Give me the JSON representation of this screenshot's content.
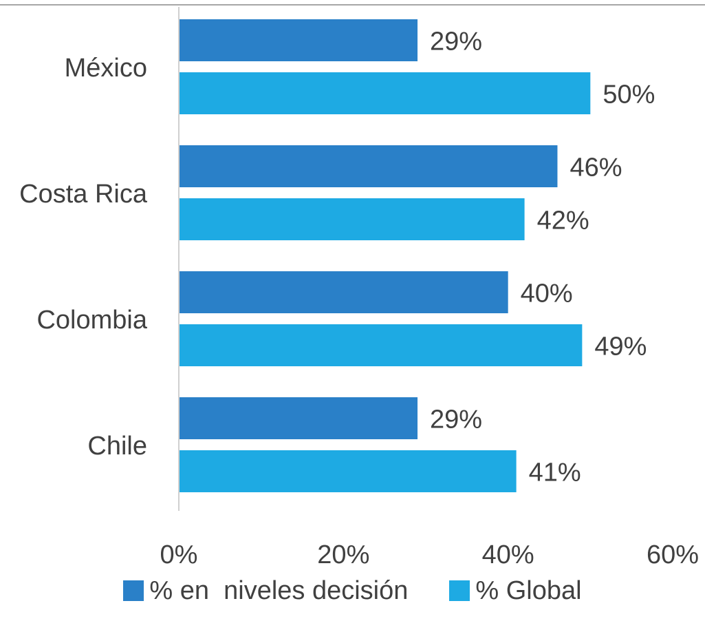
{
  "chart_data": {
    "type": "bar",
    "orientation": "horizontal",
    "categories": [
      "México",
      "Costa Rica",
      "Colombia",
      "Chile"
    ],
    "series": [
      {
        "name": "% en  niveles decisión",
        "color": "#2a80c8",
        "values": [
          29,
          46,
          40,
          29
        ],
        "labels": [
          "29%",
          "46%",
          "40%",
          "29%"
        ]
      },
      {
        "name": "% Global",
        "color": "#1eaae3",
        "values": [
          50,
          42,
          49,
          41
        ],
        "labels": [
          "50%",
          "42%",
          "49%",
          "41%"
        ]
      }
    ],
    "xlim": [
      0,
      60
    ],
    "xticks": [
      0,
      20,
      40,
      60
    ],
    "xtick_labels": [
      "0%",
      "20%",
      "40%",
      "60%"
    ],
    "title": "",
    "xlabel": "",
    "ylabel": "",
    "grid": false,
    "legend_position": "bottom"
  }
}
